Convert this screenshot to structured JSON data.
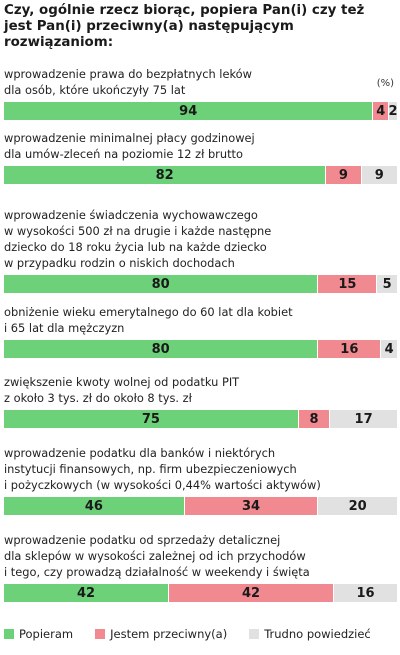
{
  "title": "Czy, ogólnie rzecz biorąc, popiera Pan(i) czy też jest Pan(i) przeciwny(a) następującym rozwiązaniom:",
  "unit_note": "(%)",
  "legend": [
    {
      "name": "Popieram",
      "color": "#6dd17a"
    },
    {
      "name": "Jestem przeciwny(a)",
      "color": "#f08a90"
    },
    {
      "name": "Trudno powiedzieć",
      "color": "#e1e1e1"
    }
  ],
  "chart_data": {
    "type": "bar",
    "stacked": true,
    "orientation": "horizontal",
    "categories": [
      "wprowadzenie prawa do bezpłatnych leków dla osób, które ukończyły 75 lat",
      "wprowadzenie minimalnej płacy godzinowej dla umów-zleceń na poziomie 12 zł brutto",
      "wprowadzenie świadczenia wychowawczego w wysokości 500 zł na drugie i każde następne dziecko do 18 roku życia lub na każde dziecko w przypadku rodzin o niskich dochodach",
      "obniżenie wieku emerytalnego do 60 lat dla kobiet i 65 lat dla mężczyzn",
      "zwiększenie kwoty wolnej od podatku PIT z około 3 tys. zł do około 8 tys. zł",
      "wprowadzenie podatku dla banków i niektórych instytucji finansowych, np. firm ubezpieczeniowych i pożyczkowych (w wysokości 0,44% wartości aktywów)",
      "wprowadzenie podatku od sprzedaży detalicznej dla sklepów w wysokości zależnej od ich przychodów i tego, czy prowadzą działalność w weekendy i święta"
    ],
    "category_lines": [
      [
        "wprowadzenie prawa do bezpłatnych leków",
        "dla osób, które ukończyły 75 lat"
      ],
      [
        "wprowadzenie minimalnej płacy godzinowej",
        "dla umów-zleceń na poziomie 12 zł brutto"
      ],
      [
        "wprowadzenie świadczenia wychowawczego",
        "w wysokości 500 zł na drugie i każde następne",
        "dziecko do 18 roku życia lub na każde dziecko",
        "w przypadku rodzin o niskich dochodach"
      ],
      [
        "obniżenie wieku emerytalnego do 60 lat dla kobiet",
        "i 65 lat dla mężczyzn"
      ],
      [
        "zwiększenie kwoty wolnej od podatku PIT",
        "z około 3 tys. zł do około 8 tys. zł"
      ],
      [
        "wprowadzenie podatku dla banków i niektórych",
        "instytucji finansowych, np. firm ubezpieczeniowych",
        "i pożyczkowych (w wysokości 0,44% wartości aktywów)"
      ],
      [
        "wprowadzenie podatku od sprzedaży detalicznej",
        "dla sklepów w wysokości zależnej od ich przychodów",
        "i tego, czy prowadzą działalność w weekendy i święta"
      ]
    ],
    "series": [
      {
        "name": "Popieram",
        "values": [
          94,
          82,
          80,
          80,
          75,
          46,
          42
        ]
      },
      {
        "name": "Jestem przeciwny(a)",
        "values": [
          4,
          9,
          15,
          16,
          8,
          34,
          42
        ]
      },
      {
        "name": "Trudno powiedzieć",
        "values": [
          2,
          9,
          5,
          4,
          17,
          20,
          16
        ]
      }
    ],
    "xlim": [
      0,
      100
    ]
  }
}
